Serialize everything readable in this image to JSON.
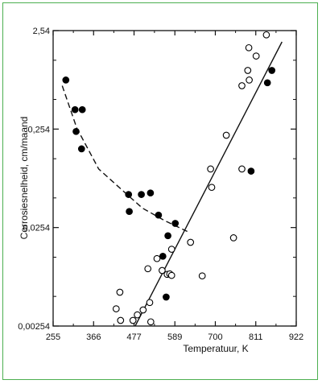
{
  "chart_data": {
    "type": "scatter",
    "xlabel": "Temperatuur, K",
    "ylabel": "Corrosiesnelheid, cm/maand",
    "x_ticks": [
      "255",
      "366",
      "477",
      "589",
      "700",
      "811",
      "922"
    ],
    "y_ticks": [
      "2,54",
      "0,254",
      "0,0254",
      "0,00254"
    ],
    "xlim": [
      255,
      922
    ],
    "ylim": [
      0.00254,
      2.54
    ],
    "y_scale": "log",
    "grid": false,
    "series": [
      {
        "marker": "filled-circle",
        "color": "#000000",
        "points": [
          [
            290,
            0.8
          ],
          [
            315,
            0.4
          ],
          [
            318,
            0.24
          ],
          [
            333,
            0.16
          ],
          [
            335,
            0.4
          ],
          [
            462,
            0.055
          ],
          [
            464,
            0.037
          ],
          [
            497,
            0.055
          ],
          [
            522,
            0.057
          ],
          [
            544,
            0.034
          ],
          [
            556,
            0.013
          ],
          [
            565,
            0.005
          ],
          [
            570,
            0.021
          ],
          [
            590,
            0.028
          ],
          [
            798,
            0.095
          ],
          [
            843,
            0.75
          ],
          [
            855,
            1.0
          ]
        ]
      },
      {
        "marker": "open-circle",
        "color": "#000000",
        "points": [
          [
            428,
            0.0038
          ],
          [
            438,
            0.0056
          ],
          [
            440,
            0.0029
          ],
          [
            474,
            0.0029
          ],
          [
            486,
            0.0033
          ],
          [
            502,
            0.0037
          ],
          [
            515,
            0.0097
          ],
          [
            520,
            0.0044
          ],
          [
            523,
            0.0028
          ],
          [
            540,
            0.0123
          ],
          [
            554,
            0.0093
          ],
          [
            568,
            0.0085
          ],
          [
            575,
            0.0086
          ],
          [
            580,
            0.0153
          ],
          [
            580,
            0.0083
          ],
          [
            632,
            0.018
          ],
          [
            664,
            0.0082
          ],
          [
            687,
            0.1
          ],
          [
            690,
            0.065
          ],
          [
            730,
            0.22
          ],
          [
            750,
            0.02
          ],
          [
            773,
            0.1
          ],
          [
            773,
            0.7
          ],
          [
            789,
            1.0
          ],
          [
            792,
            1.7
          ],
          [
            793,
            0.8
          ],
          [
            812,
            1.4
          ],
          [
            840,
            2.3
          ]
        ]
      }
    ],
    "lines": [
      {
        "style": "dashed",
        "points": [
          [
            280,
            0.7
          ],
          [
            320,
            0.26
          ],
          [
            380,
            0.1
          ],
          [
            440,
            0.063
          ],
          [
            500,
            0.04
          ],
          [
            560,
            0.03
          ],
          [
            625,
            0.023
          ]
        ]
      },
      {
        "style": "solid",
        "points": [
          [
            480,
            0.00254
          ],
          [
            883,
            1.95
          ]
        ]
      }
    ]
  }
}
